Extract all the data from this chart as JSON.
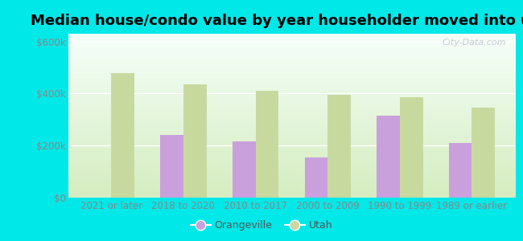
{
  "title": "Median house/condo value by year householder moved into unit",
  "categories": [
    "2021 or later",
    "2018 to 2020",
    "2010 to 2017",
    "2000 to 2009",
    "1990 to 1999",
    "1989 or earlier"
  ],
  "orangeville_values": [
    null,
    240000,
    215000,
    155000,
    315000,
    210000
  ],
  "utah_values": [
    480000,
    435000,
    410000,
    395000,
    385000,
    345000
  ],
  "bar_color_orangeville": "#c9a0dc",
  "bar_color_utah": "#c8d9a0",
  "background_outer": "#00e8e8",
  "background_inner_top": "#f5fffa",
  "background_inner_bottom": "#d5edc0",
  "yticks": [
    0,
    200000,
    400000,
    600000
  ],
  "ytick_labels": [
    "$0",
    "$200k",
    "$400k",
    "$600k"
  ],
  "ylim": [
    0,
    630000
  ],
  "bar_width": 0.32,
  "watermark": "City-Data.com",
  "legend_orangeville": "Orangeville",
  "legend_utah": "Utah",
  "title_fontsize": 13,
  "tick_color": "#888888",
  "tick_fontsize": 8.5
}
